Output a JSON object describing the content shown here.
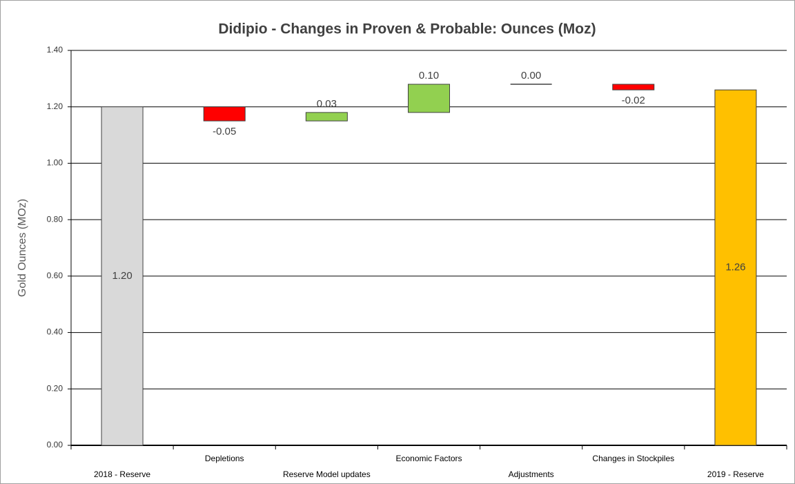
{
  "chart_data": {
    "type": "waterfall",
    "title": "Didipio - Changes in Proven & Probable: Ounces (Moz)",
    "y_label": "Gold Ounces (MOz)",
    "categories": [
      "2018 - Reserve",
      "Depletions",
      "Reserve Model updates",
      "Economic Factors",
      "Adjustments",
      "Changes in Stockpiles",
      "2019 - Reserve"
    ],
    "measure": [
      "absolute",
      "relative",
      "relative",
      "relative",
      "relative",
      "relative",
      "absolute"
    ],
    "values": [
      1.2,
      -0.05,
      0.03,
      0.1,
      0,
      -0.02,
      1.26
    ],
    "value_labels": [
      "1.20",
      "-0.05",
      "0.03",
      "0.10",
      "0.00",
      "-0.02",
      "1.26"
    ],
    "colors": [
      "#d9d9d9",
      "#ff0000",
      "#92d050",
      "#92d050",
      "#92d050",
      "#ff0000",
      "#ffc000"
    ],
    "ylim": [
      0,
      1.4
    ],
    "yticks": [
      {
        "value": 0,
        "label": "0.00"
      },
      {
        "value": 0.2,
        "label": "0.20"
      },
      {
        "value": 0.4,
        "label": "0.40"
      },
      {
        "value": 0.6,
        "label": "0.60"
      },
      {
        "value": 0.8,
        "label": "0.80"
      },
      {
        "value": 1,
        "label": "1.00"
      },
      {
        "value": 1.2,
        "label": "1.20"
      },
      {
        "value": 1.4,
        "label": "1.40"
      }
    ],
    "grid": true
  }
}
